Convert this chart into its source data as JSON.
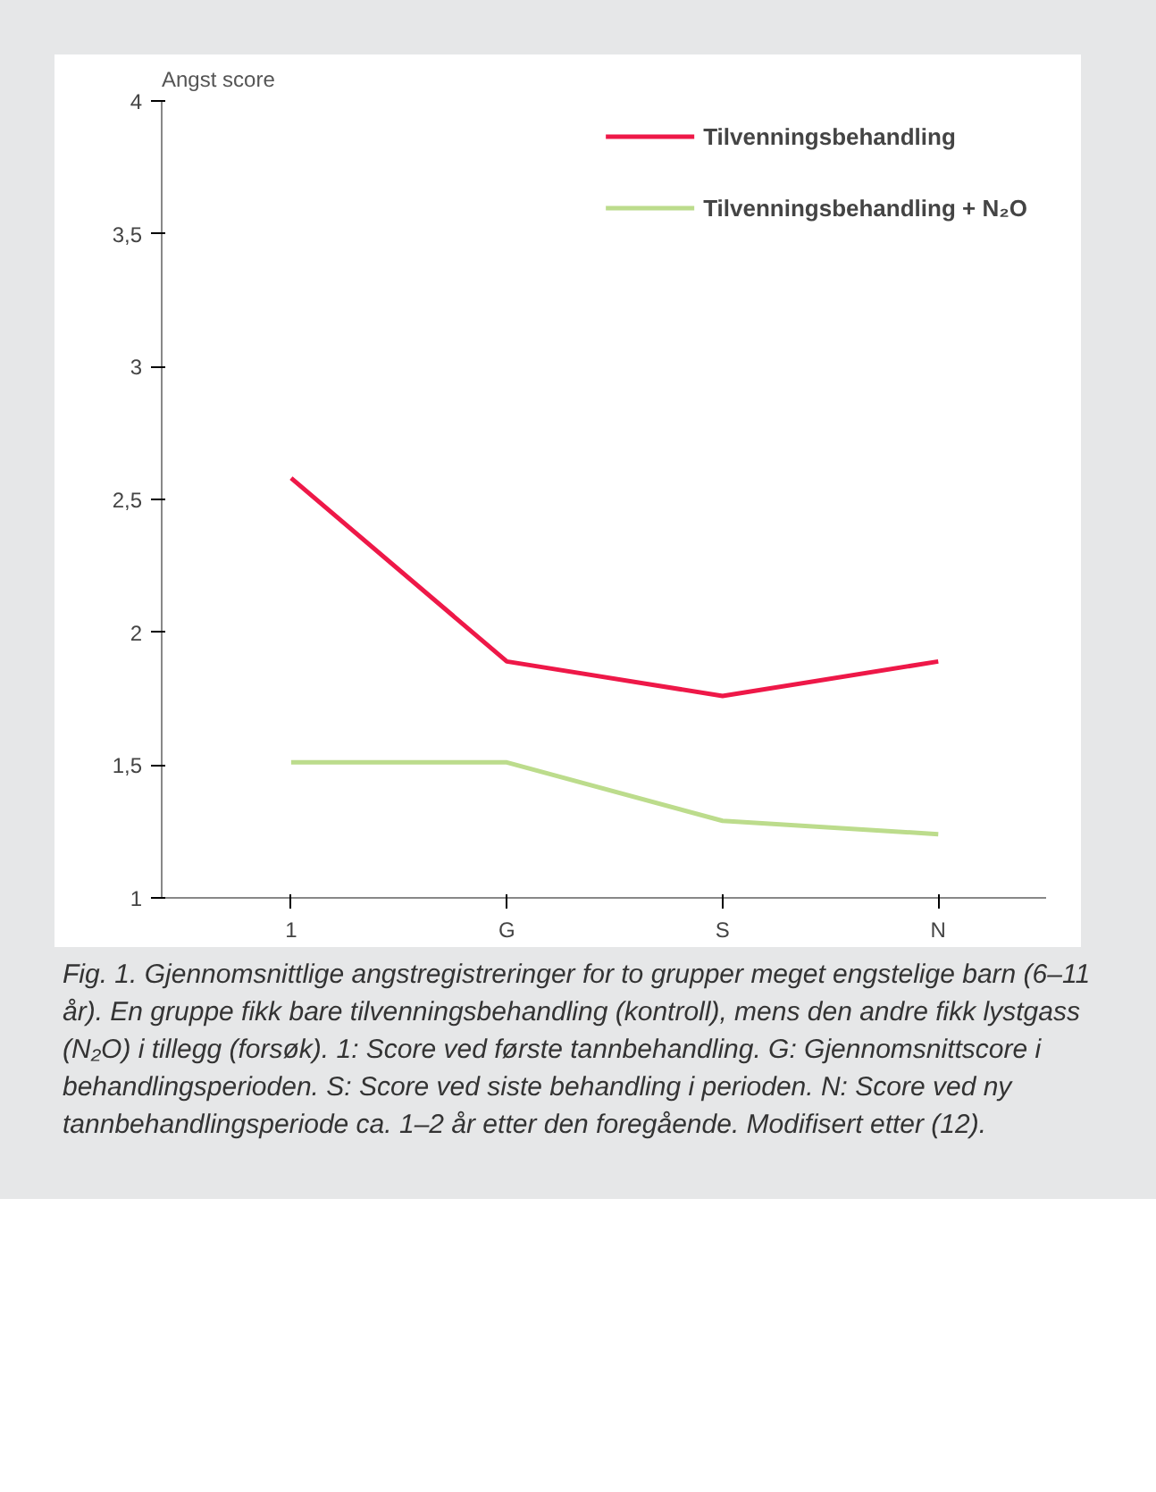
{
  "chart_data": {
    "type": "line",
    "ylabel": "Angst score",
    "categories": [
      "1",
      "G",
      "S",
      "N"
    ],
    "series": [
      {
        "name": "Tilvenningsbehandling",
        "color": "#ee1848",
        "values": [
          2.58,
          1.89,
          1.76,
          1.89
        ]
      },
      {
        "name": "Tilvenningsbehandling + N₂O",
        "color": "#bcdc8c",
        "values": [
          1.51,
          1.51,
          1.29,
          1.24
        ]
      }
    ],
    "ylim": [
      1,
      4
    ],
    "yticks": [
      1,
      {
        "value": 1.5,
        "label": "1,5"
      },
      2,
      {
        "value": 2.5,
        "label": "2,5"
      },
      3,
      {
        "value": 3.5,
        "label": "3,5"
      },
      4
    ],
    "grid": false,
    "legend": "top right",
    "marker": "none",
    "line_style": "solid",
    "annotations": [
      "Fig. 1. Gjennomsnittlige angstregistreringer for to grupper meget engstelige barn (6–11 år). En gruppe fikk bare tilvenningsbehandling (kontroll), mens den andre fikk lystgass (N₂O) i tillegg (forsøk). 1: Score ved første tannbehandling. G: Gjennomsnittscore i behandlingsperioden. S: Score ved siste behandling i perioden. N: Score ved ny tannbehandlingsperiode ca. 1–2 år etter den foregående. Modifisert etter (12)."
    ]
  }
}
